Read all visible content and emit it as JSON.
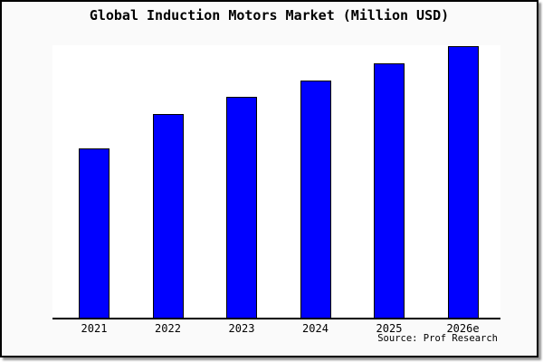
{
  "window": {
    "background_color": "#fafafa",
    "frame_border_color": "#000000",
    "plot_background_color": "#ffffff"
  },
  "title": "Global Induction Motors Market (Million USD)",
  "source_label": "Source: Prof Research",
  "chart_data": {
    "type": "bar",
    "title": "Global Induction Motors Market (Million USD)",
    "categories": [
      "2021",
      "2022",
      "2023",
      "2024",
      "2025",
      "2026e"
    ],
    "values": [
      100,
      120,
      130,
      140,
      150,
      160
    ],
    "value_scale_note": "relative estimates; chart displays no y-axis, gridlines or data labels",
    "xlabel": "",
    "ylabel": "",
    "ylim": [
      0,
      161
    ],
    "grid": false,
    "legend": false,
    "bar_color": "#0000ff",
    "bar_border_color": "#000000",
    "axis_color": "#000000",
    "source_label": "Source: Prof Research"
  }
}
